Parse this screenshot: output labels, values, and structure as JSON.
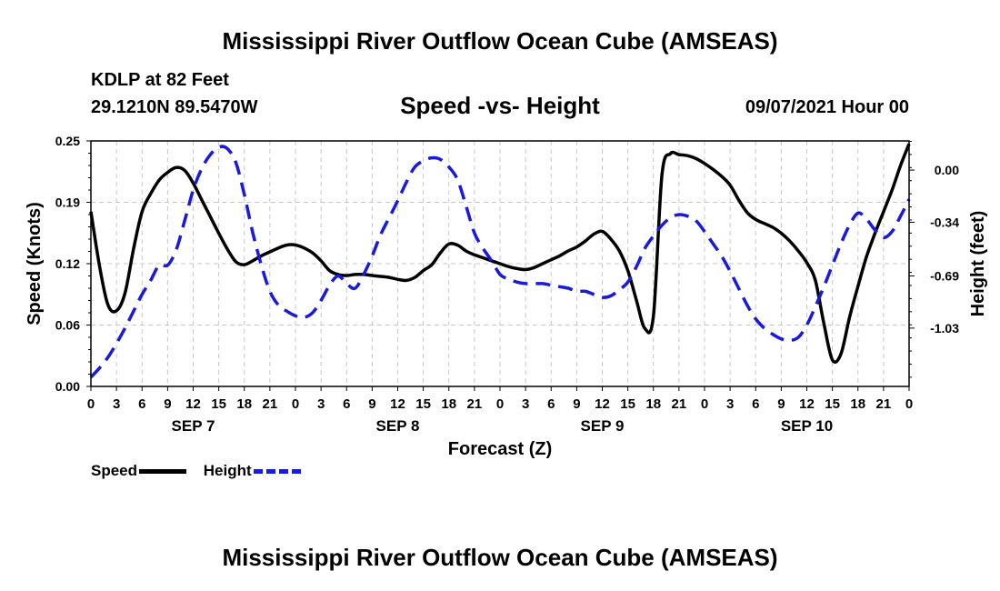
{
  "header": {
    "title": "Mississippi River Outflow Ocean Cube (AMSEAS)",
    "station": "KDLP at 82 Feet",
    "coords": "29.1210N  89.5470W",
    "subtitle": "Speed -vs- Height",
    "datetime": "09/07/2021 Hour 00"
  },
  "footer": {
    "title": "Mississippi River Outflow Ocean Cube (AMSEAS)"
  },
  "legend": {
    "speed_label": "Speed",
    "height_label": "Height"
  },
  "colors": {
    "speed": "#000000",
    "height": "#1a1adc",
    "grid": "#c8c8c8"
  },
  "chart_data": {
    "type": "line",
    "title": "Speed -vs- Height",
    "xlabel": "Forecast (Z)",
    "ylabel": "Speed (Knots)",
    "y2label": "Height (feet)",
    "x_range": [
      0,
      96
    ],
    "x_tick_labels": [
      "0",
      "3",
      "6",
      "9",
      "12",
      "15",
      "18",
      "21",
      "0",
      "3",
      "6",
      "9",
      "12",
      "15",
      "18",
      "21",
      "0",
      "3",
      "6",
      "9",
      "12",
      "15",
      "18",
      "21",
      "0",
      "3",
      "6",
      "9",
      "12",
      "15",
      "18",
      "21",
      "0"
    ],
    "date_labels": [
      {
        "label": "SEP 7",
        "x": 12
      },
      {
        "label": "SEP 8",
        "x": 36
      },
      {
        "label": "SEP 9",
        "x": 60
      },
      {
        "label": "SEP 10",
        "x": 84
      }
    ],
    "ylim": [
      0.0,
      0.25
    ],
    "y_ticks": [
      "0.00",
      "0.06",
      "0.12",
      "0.19",
      "0.25"
    ],
    "y_tick_values": [
      0.0,
      0.0625,
      0.125,
      0.1875,
      0.25
    ],
    "y2lim": [
      -1.41,
      0.19
    ],
    "y2_ticks": [
      "0.00",
      "-0.34",
      "-0.69",
      "-1.03"
    ],
    "y2_tick_values": [
      0.0,
      -0.34,
      -0.69,
      -1.03
    ],
    "series": [
      {
        "name": "Speed",
        "axis": "left",
        "style": "solid",
        "x": [
          0,
          1,
          2,
          3,
          4,
          5,
          6,
          7,
          8,
          9,
          10,
          11,
          12,
          13,
          14,
          15,
          16,
          17,
          18,
          19,
          20,
          21,
          22,
          23,
          24,
          25,
          26,
          27,
          28,
          29,
          30,
          31,
          32,
          33,
          34,
          35,
          36,
          37,
          38,
          39,
          40,
          41,
          42,
          43,
          44,
          45,
          46,
          47,
          48,
          49,
          50,
          51,
          52,
          53,
          54,
          55,
          56,
          57,
          58,
          59,
          60,
          61,
          62,
          63,
          64,
          65,
          66,
          67,
          68,
          69,
          70,
          71,
          72,
          73,
          74,
          75,
          76,
          77,
          78,
          79,
          80,
          81,
          82,
          83,
          84,
          85,
          86,
          87,
          88,
          89,
          90,
          91,
          92,
          93,
          94,
          95,
          96
        ],
        "values": [
          0.178,
          0.123,
          0.083,
          0.077,
          0.095,
          0.14,
          0.178,
          0.196,
          0.21,
          0.218,
          0.223,
          0.22,
          0.207,
          0.19,
          0.173,
          0.156,
          0.14,
          0.127,
          0.124,
          0.128,
          0.133,
          0.137,
          0.141,
          0.144,
          0.144,
          0.141,
          0.136,
          0.128,
          0.118,
          0.114,
          0.113,
          0.114,
          0.114,
          0.113,
          0.112,
          0.111,
          0.109,
          0.108,
          0.111,
          0.118,
          0.124,
          0.136,
          0.145,
          0.144,
          0.138,
          0.134,
          0.131,
          0.128,
          0.125,
          0.122,
          0.12,
          0.119,
          0.121,
          0.125,
          0.129,
          0.133,
          0.138,
          0.142,
          0.148,
          0.155,
          0.158,
          0.15,
          0.138,
          0.118,
          0.088,
          0.059,
          0.072,
          0.215,
          0.237,
          0.236,
          0.235,
          0.232,
          0.227,
          0.221,
          0.214,
          0.205,
          0.19,
          0.177,
          0.17,
          0.166,
          0.162,
          0.156,
          0.148,
          0.138,
          0.126,
          0.108,
          0.064,
          0.027,
          0.033,
          0.07,
          0.102,
          0.132,
          0.156,
          0.178,
          0.2,
          0.225,
          0.247
        ]
      },
      {
        "name": "Height",
        "axis": "right",
        "style": "dashed",
        "x": [
          0,
          1,
          2,
          3,
          4,
          5,
          6,
          7,
          8,
          9,
          10,
          11,
          12,
          13,
          14,
          15,
          16,
          17,
          18,
          19,
          20,
          21,
          22,
          23,
          24,
          25,
          26,
          27,
          28,
          29,
          30,
          31,
          32,
          33,
          34,
          35,
          36,
          37,
          38,
          39,
          40,
          41,
          42,
          43,
          44,
          45,
          46,
          47,
          48,
          49,
          50,
          51,
          52,
          53,
          54,
          55,
          56,
          57,
          58,
          59,
          60,
          61,
          62,
          63,
          64,
          65,
          66,
          67,
          68,
          69,
          70,
          71,
          72,
          73,
          74,
          75,
          76,
          77,
          78,
          79,
          80,
          81,
          82,
          83,
          84,
          85,
          86,
          87,
          88,
          89,
          90,
          91,
          92,
          93,
          94,
          95,
          96
        ],
        "values": [
          -1.35,
          -1.29,
          -1.22,
          -1.13,
          -1.03,
          -0.92,
          -0.81,
          -0.72,
          -0.62,
          -0.62,
          -0.52,
          -0.33,
          -0.13,
          0.01,
          0.1,
          0.15,
          0.14,
          0.05,
          -0.16,
          -0.41,
          -0.62,
          -0.79,
          -0.88,
          -0.92,
          -0.95,
          -0.96,
          -0.93,
          -0.85,
          -0.75,
          -0.69,
          -0.74,
          -0.77,
          -0.68,
          -0.56,
          -0.42,
          -0.31,
          -0.2,
          -0.08,
          0.02,
          0.06,
          0.08,
          0.07,
          0.02,
          -0.06,
          -0.23,
          -0.41,
          -0.51,
          -0.59,
          -0.68,
          -0.71,
          -0.73,
          -0.74,
          -0.74,
          -0.74,
          -0.75,
          -0.76,
          -0.77,
          -0.79,
          -0.79,
          -0.81,
          -0.83,
          -0.82,
          -0.78,
          -0.73,
          -0.63,
          -0.51,
          -0.43,
          -0.36,
          -0.31,
          -0.29,
          -0.3,
          -0.33,
          -0.4,
          -0.48,
          -0.56,
          -0.66,
          -0.77,
          -0.88,
          -0.97,
          -1.03,
          -1.07,
          -1.1,
          -1.11,
          -1.09,
          -1.01,
          -0.89,
          -0.76,
          -0.62,
          -0.48,
          -0.36,
          -0.28,
          -0.32,
          -0.39,
          -0.44,
          -0.4,
          -0.3,
          -0.19
        ]
      }
    ]
  }
}
